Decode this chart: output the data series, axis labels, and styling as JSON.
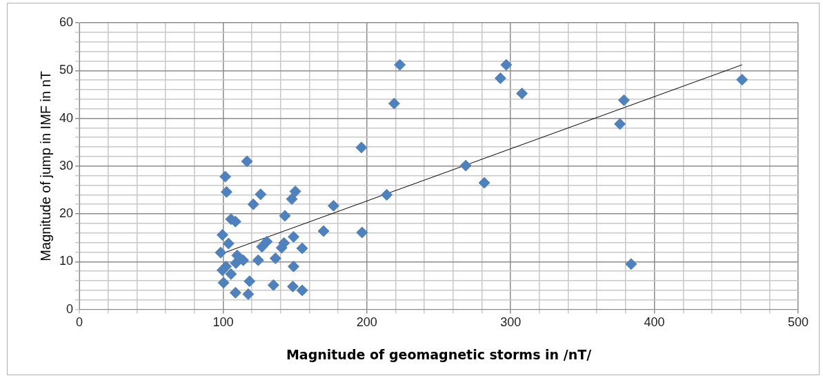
{
  "chart_data": {
    "type": "scatter",
    "xlabel": "Magnitude of geomagnetic storms in /nT/",
    "ylabel": "Magnitude of jump in IMF in nT",
    "xlim": [
      0,
      500
    ],
    "ylim": [
      0,
      60
    ],
    "xticks": [
      0,
      {
        "value": 20,
        "label": null
      },
      {
        "value": 40,
        "label": null
      },
      {
        "value": 60,
        "label": null
      },
      {
        "value": 80,
        "label": null
      },
      100,
      {
        "value": 120,
        "label": null
      },
      {
        "value": 140,
        "label": null
      },
      {
        "value": 160,
        "label": null
      },
      {
        "value": 180,
        "label": null
      },
      200,
      {
        "value": 220,
        "label": null
      },
      {
        "value": 240,
        "label": null
      },
      {
        "value": 260,
        "label": null
      },
      {
        "value": 280,
        "label": null
      },
      300,
      {
        "value": 320,
        "label": null
      },
      {
        "value": 340,
        "label": null
      },
      {
        "value": 360,
        "label": null
      },
      {
        "value": 380,
        "label": null
      },
      400,
      {
        "value": 420,
        "label": null
      },
      {
        "value": 440,
        "label": null
      },
      {
        "value": 460,
        "label": null
      },
      {
        "value": 480,
        "label": null
      },
      500
    ],
    "yticks": [
      0,
      {
        "value": 2,
        "label": null
      },
      {
        "value": 4,
        "label": null
      },
      {
        "value": 6,
        "label": null
      },
      {
        "value": 8,
        "label": null
      },
      10,
      {
        "value": 12,
        "label": null
      },
      {
        "value": 14,
        "label": null
      },
      {
        "value": 16,
        "label": null
      },
      {
        "value": 18,
        "label": null
      },
      20,
      {
        "value": 22,
        "label": null
      },
      {
        "value": 24,
        "label": null
      },
      {
        "value": 26,
        "label": null
      },
      {
        "value": 28,
        "label": null
      },
      30,
      {
        "value": 32,
        "label": null
      },
      {
        "value": 34,
        "label": null
      },
      {
        "value": 36,
        "label": null
      },
      {
        "value": 38,
        "label": null
      },
      40,
      {
        "value": 42,
        "label": null
      },
      {
        "value": 44,
        "label": null
      },
      {
        "value": 46,
        "label": null
      },
      {
        "value": 48,
        "label": null
      },
      50,
      {
        "value": 52,
        "label": null
      },
      {
        "value": 54,
        "label": null
      },
      {
        "value": 56,
        "label": null
      },
      {
        "value": 58,
        "label": null
      },
      60
    ],
    "grid": true,
    "marker": "diamond",
    "series": [
      {
        "type": "scatter",
        "color": "#4f81bd",
        "x": [
          222.9,
          219,
          296.9,
          292.9,
          307.9,
          378.8,
          376,
          461,
          268.8,
          281.7,
          213.8,
          383.8,
          116.6,
          196.2,
          101.5,
          102.4,
          126.1,
          121,
          150.2,
          147.8,
          176.8,
          143,
          105.5,
          108.6,
          169.9,
          196.6,
          99.5,
          149,
          103.8,
          130.4,
          127,
          142.4,
          140.7,
          155,
          98.3,
          124.4,
          136.4,
          108.9,
          102,
          99.5,
          105.5,
          149,
          100.3,
          118.4,
          108.6,
          117.5,
          135,
          148.5,
          155,
          114,
          109.8
        ],
        "values": [
          51.2,
          43.1,
          51.2,
          48.4,
          45.2,
          43.8,
          38.8,
          48.1,
          30.1,
          26.5,
          24.0,
          9.5,
          31.0,
          33.9,
          27.8,
          24.6,
          24.1,
          22.0,
          24.7,
          23.1,
          21.7,
          19.6,
          18.9,
          18.4,
          16.4,
          16.1,
          15.6,
          15.2,
          13.8,
          14.2,
          13.1,
          13.9,
          12.9,
          12.8,
          11.9,
          10.3,
          10.7,
          9.7,
          9.0,
          8.2,
          7.4,
          9.0,
          5.6,
          5.9,
          3.5,
          3.2,
          5.1,
          4.8,
          4.0,
          10.3,
          11.3
        ]
      },
      {
        "type": "line",
        "marker": "none",
        "color": "#000000",
        "x": [
          102,
          461
        ],
        "values": [
          12,
          51.2
        ]
      }
    ]
  }
}
